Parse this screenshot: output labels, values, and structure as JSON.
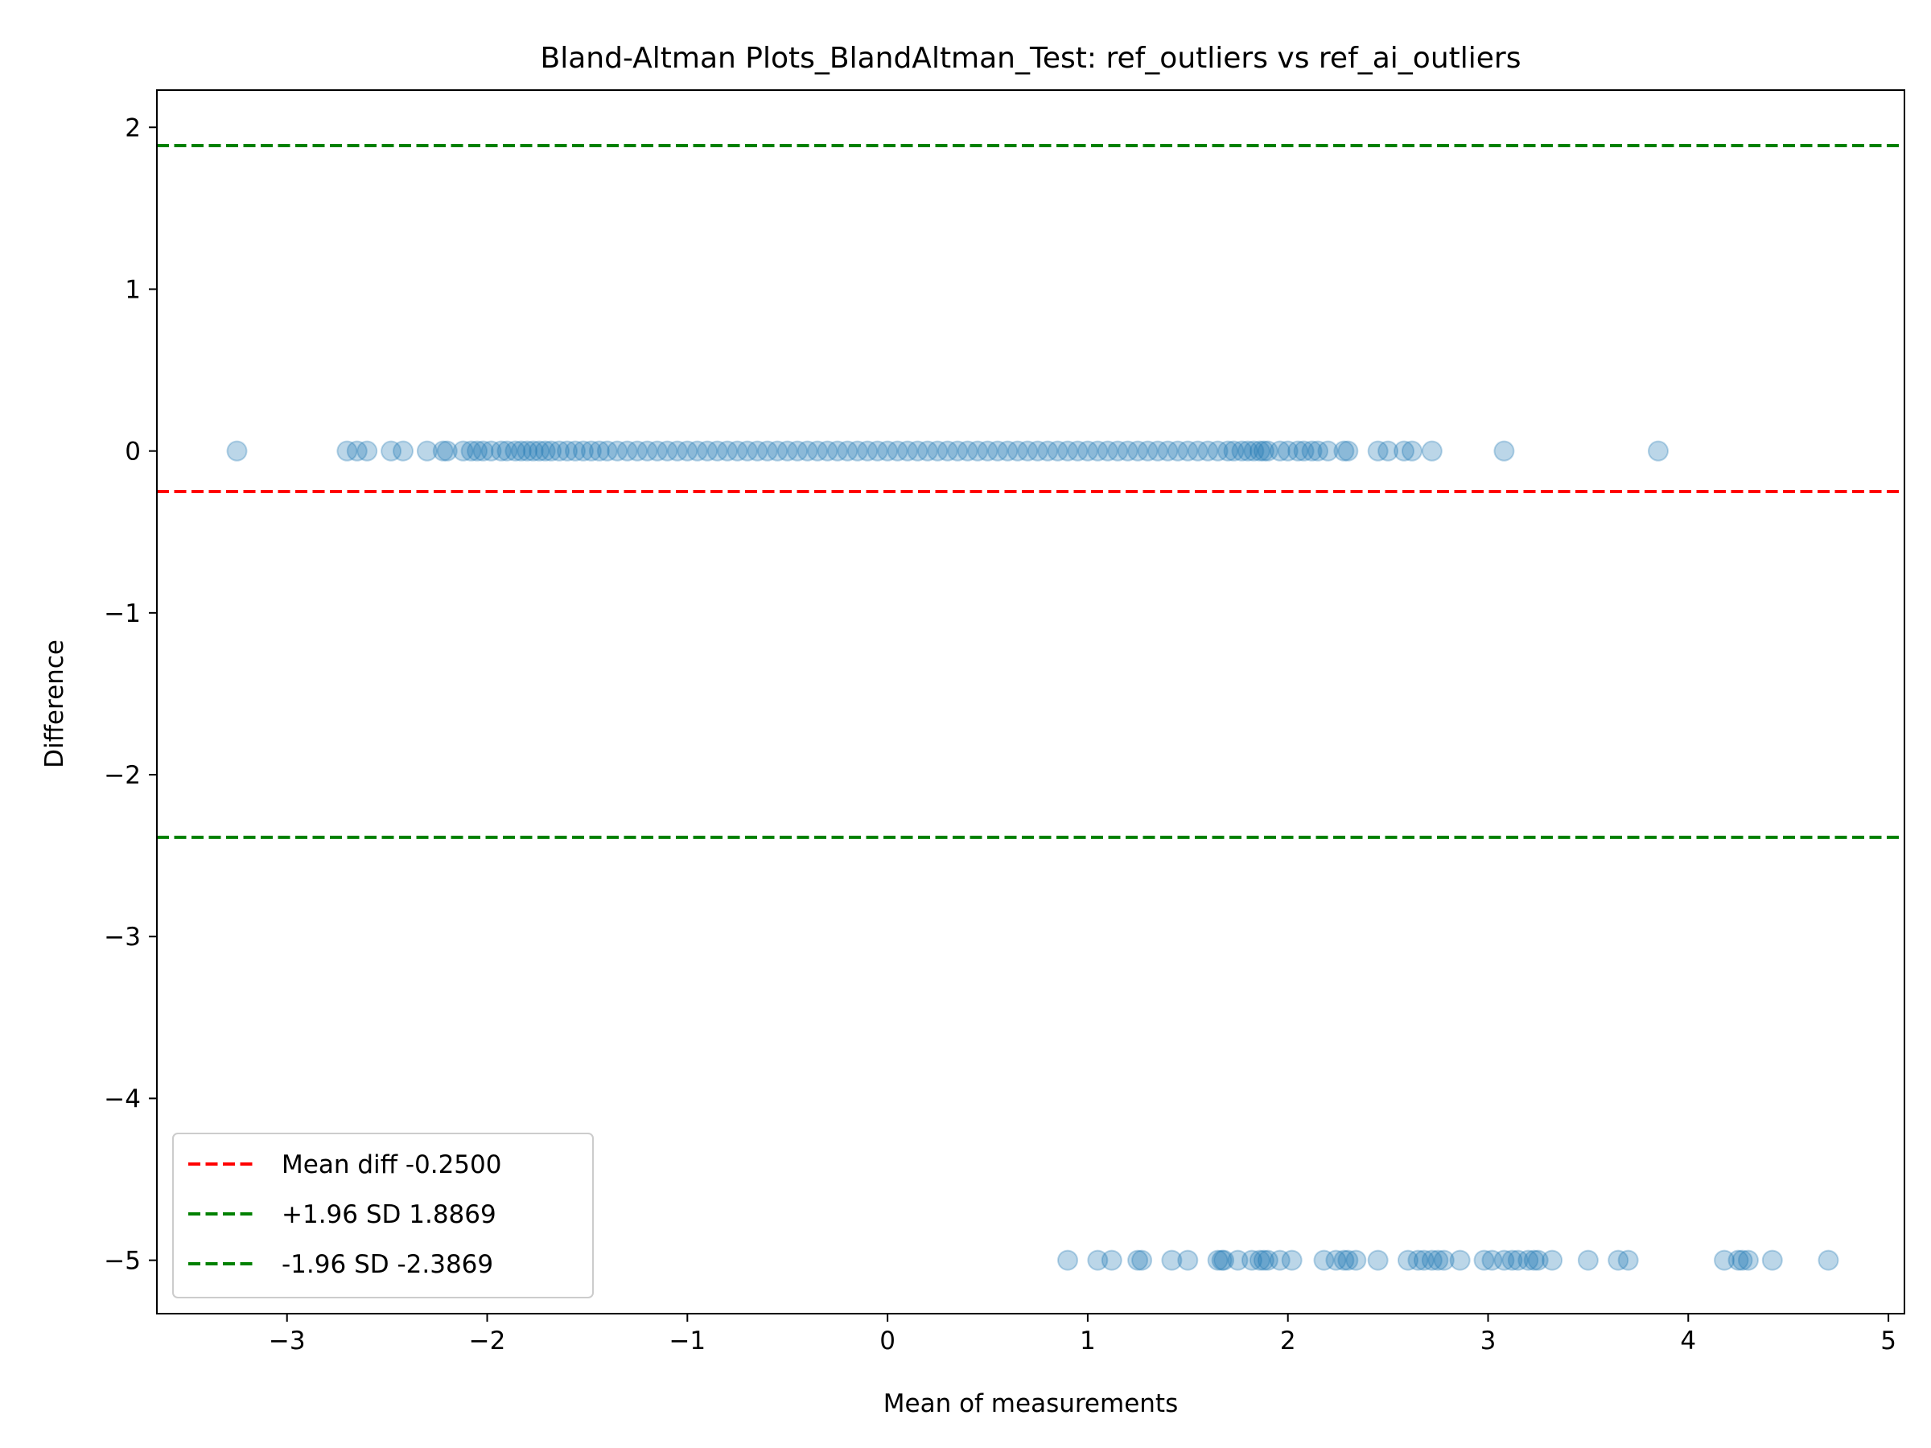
{
  "chart_data": {
    "type": "scatter",
    "title": "Bland-Altman Plots_BlandAltman_Test: ref_outliers vs ref_ai_outliers",
    "xlabel": "Mean of measurements",
    "ylabel": "Difference",
    "xlim": [
      -3.65,
      5.08
    ],
    "ylim": [
      -5.33,
      2.23
    ],
    "x_ticks": [
      -3,
      -2,
      -1,
      0,
      1,
      2,
      3,
      4,
      5
    ],
    "y_ticks": [
      -5,
      -4,
      -3,
      -2,
      -1,
      0,
      1,
      2
    ],
    "x_tick_labels": [
      "−3",
      "−2",
      "−1",
      "0",
      "1",
      "2",
      "3",
      "4",
      "5"
    ],
    "y_tick_labels": [
      "−5",
      "−4",
      "−3",
      "−2",
      "−1",
      "0",
      "1",
      "2"
    ],
    "grid": false,
    "legend_position": "lower-left",
    "point_color": "#1f77b4",
    "point_alpha": 0.3,
    "reference_lines": [
      {
        "label": "Mean diff -0.2500",
        "y": -0.25,
        "color": "#ff0000",
        "style": "dashed"
      },
      {
        "label": "+1.96 SD 1.8869",
        "y": 1.8869,
        "color": "#008000",
        "style": "dashed"
      },
      {
        "label": "-1.96 SD -2.3869",
        "y": -2.3869,
        "color": "#008000",
        "style": "dashed"
      }
    ],
    "series": [
      {
        "values_y0_x": [
          -3.25,
          -2.7,
          -2.65,
          -2.6,
          -2.48,
          -2.42,
          -2.3,
          -2.22,
          -2.2,
          -2.12,
          -2.08,
          -2.05,
          -2.02,
          -1.98,
          -1.93,
          -1.9,
          -1.86,
          -1.83,
          -1.8,
          -1.77,
          -1.74,
          -1.71,
          -1.68,
          -1.64,
          -1.6,
          -1.56,
          -1.52,
          -1.48,
          -1.44,
          -1.4,
          -1.35,
          -1.3,
          -1.25,
          -1.2,
          -1.15,
          -1.1,
          -1.05,
          -1.0,
          -0.95,
          -0.9,
          -0.85,
          -0.8,
          -0.75,
          -0.7,
          -0.65,
          -0.6,
          -0.55,
          -0.5,
          -0.45,
          -0.4,
          -0.35,
          -0.3,
          -0.25,
          -0.2,
          -0.15,
          -0.1,
          -0.05,
          0.0,
          0.05,
          0.1,
          0.15,
          0.2,
          0.25,
          0.3,
          0.35,
          0.4,
          0.45,
          0.5,
          0.55,
          0.6,
          0.65,
          0.7,
          0.75,
          0.8,
          0.85,
          0.9,
          0.95,
          1.0,
          1.05,
          1.1,
          1.15,
          1.2,
          1.25,
          1.3,
          1.35,
          1.4,
          1.45,
          1.5,
          1.55,
          1.6,
          1.65,
          1.7,
          1.73,
          1.77,
          1.8,
          1.83,
          1.86,
          1.88,
          1.9,
          1.96,
          2.0,
          2.05,
          2.08,
          2.12,
          2.15,
          2.2,
          2.28,
          2.3,
          2.45,
          2.5,
          2.58,
          2.62,
          2.72,
          3.08,
          3.85
        ],
        "values_ym5_x": [
          0.9,
          1.05,
          1.12,
          1.25,
          1.27,
          1.42,
          1.5,
          1.65,
          1.67,
          1.68,
          1.75,
          1.82,
          1.86,
          1.88,
          1.9,
          1.96,
          2.02,
          2.18,
          2.24,
          2.28,
          2.3,
          2.34,
          2.45,
          2.6,
          2.65,
          2.68,
          2.72,
          2.75,
          2.78,
          2.86,
          2.98,
          3.02,
          3.08,
          3.12,
          3.15,
          3.2,
          3.23,
          3.25,
          3.32,
          3.5,
          3.65,
          3.7,
          4.18,
          4.25,
          4.27,
          4.3,
          4.42,
          4.7
        ]
      }
    ]
  }
}
